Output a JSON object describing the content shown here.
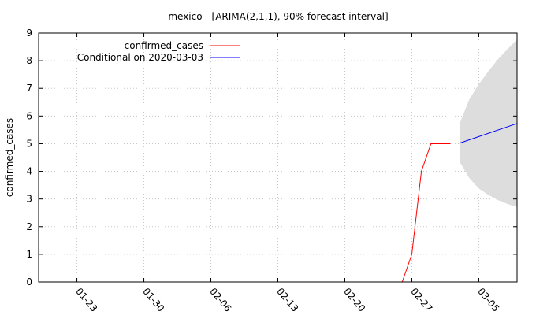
{
  "chart_data": {
    "type": "line",
    "title": "mexico -  [ARIMA(2,1,1), 90% forecast interval]",
    "xlabel": "",
    "ylabel": "confirmed_cases",
    "ylim": [
      0,
      9
    ],
    "xlim": [
      "2020-01-19",
      "2020-03-09"
    ],
    "x_tick_labels": [
      "01-23",
      "01-30",
      "02-06",
      "02-13",
      "02-20",
      "02-27",
      "03-05"
    ],
    "x_tick_dates": [
      "2020-01-23",
      "2020-01-30",
      "2020-02-06",
      "2020-02-13",
      "2020-02-20",
      "2020-02-27",
      "2020-03-05"
    ],
    "y_ticks": [
      0,
      1,
      2,
      3,
      4,
      5,
      6,
      7,
      8,
      9
    ],
    "grid": true,
    "legend_position": "top-left",
    "series": [
      {
        "name": "confirmed_cases",
        "color": "#ff0000",
        "points": [
          [
            "2020-02-26",
            0
          ],
          [
            "2020-02-27",
            1
          ],
          [
            "2020-02-28",
            4
          ],
          [
            "2020-02-29",
            5
          ],
          [
            "2020-03-01",
            5
          ],
          [
            "2020-03-02",
            5
          ]
        ]
      },
      {
        "name": "Conditional on 2020-03-03",
        "color": "#0000ff",
        "points": [
          [
            "2020-03-03",
            5.02
          ],
          [
            "2020-03-09",
            5.73
          ]
        ]
      }
    ],
    "forecast_interval": {
      "level": "90%",
      "color": "#dddddd",
      "upper": [
        [
          "2020-03-03",
          5.72
        ],
        [
          "2020-03-04",
          6.6
        ],
        [
          "2020-03-05",
          7.15
        ],
        [
          "2020-03-06",
          7.62
        ],
        [
          "2020-03-07",
          8.05
        ],
        [
          "2020-03-08",
          8.42
        ],
        [
          "2020-03-09",
          8.77
        ]
      ],
      "lower": [
        [
          "2020-03-03",
          4.34
        ],
        [
          "2020-03-04",
          3.76
        ],
        [
          "2020-03-05",
          3.38
        ],
        [
          "2020-03-06",
          3.15
        ],
        [
          "2020-03-07",
          2.96
        ],
        [
          "2020-03-08",
          2.82
        ],
        [
          "2020-03-09",
          2.71
        ]
      ]
    }
  }
}
